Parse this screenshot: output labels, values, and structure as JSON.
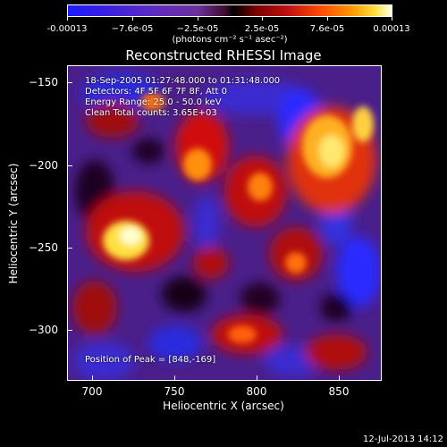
{
  "colorbar": {
    "ticks": [
      "-0.00013",
      "−7.6e-05",
      "−2.5e-05",
      "2.5e-05",
      "7.6e-05",
      "0.00013"
    ],
    "units": "(photons cm⁻² s⁻¹ asec⁻²)"
  },
  "plot": {
    "title": "Reconstructed RHESSI Image",
    "info": [
      "18-Sep-2005 01:27:48.000 to 01:31:48.000",
      "Detectors: 4F 5F 6F 7F 8F, Att 0",
      "Energy Range: 25.0 - 50.0 keV",
      "Clean     Total counts: 3.65E+03"
    ],
    "peak": "Position of Peak = [848,-169]",
    "xlabel": "Heliocentric X (arcsec)",
    "ylabel": "Heliocentric Y (arcsec)",
    "xticks": [
      "700",
      "750",
      "800",
      "850"
    ],
    "yticks": [
      "−150",
      "−200",
      "−250",
      "−300"
    ]
  },
  "timestamp": "12-Jul-2013 14:12"
}
